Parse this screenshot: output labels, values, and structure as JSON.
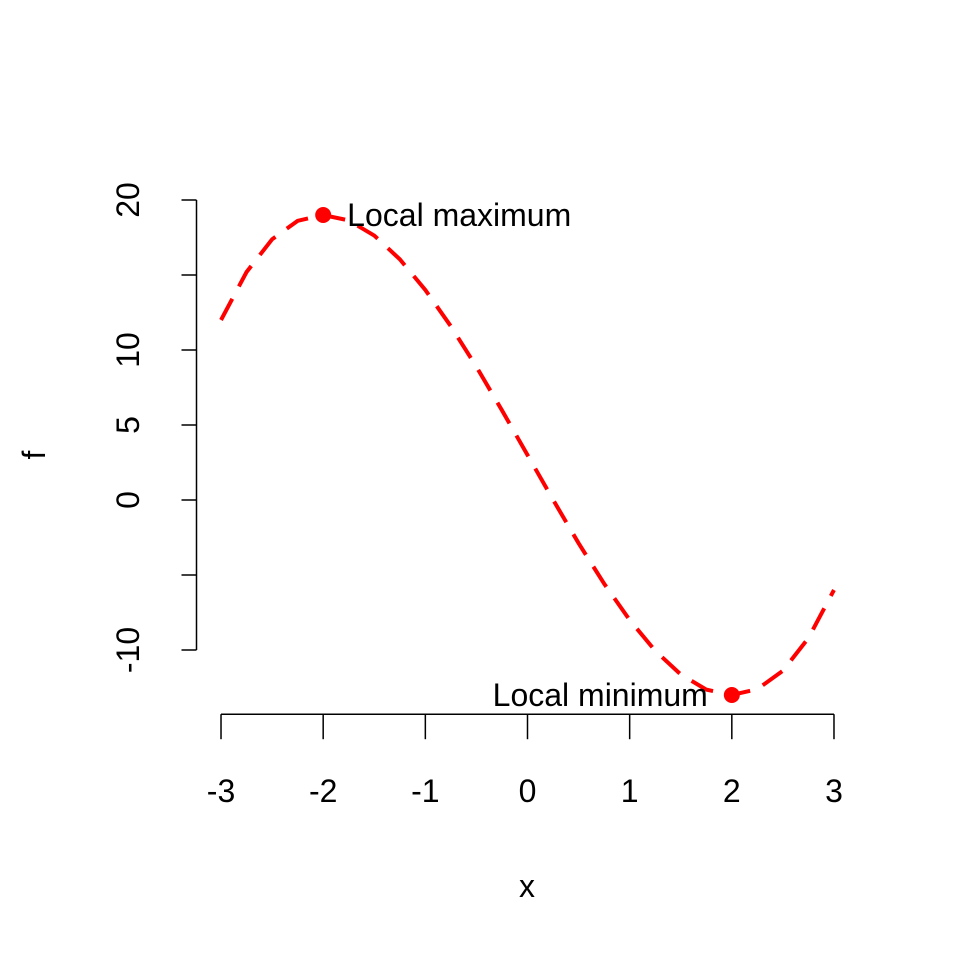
{
  "chart_data": {
    "type": "line",
    "x_label": "x",
    "y_label": "f",
    "x": [
      -3,
      -2.75,
      -2.5,
      -2.25,
      -2,
      -1.75,
      -1.5,
      -1.25,
      -1,
      -0.75,
      -0.5,
      -0.25,
      0,
      0.25,
      0.5,
      0.75,
      1,
      1.25,
      1.5,
      1.75,
      2,
      2.25,
      2.5,
      2.75,
      3
    ],
    "series": [
      {
        "color": "#ff0000",
        "values": [
          12,
          15.2,
          17.38,
          18.61,
          19,
          18.64,
          17.63,
          16.05,
          14,
          11.58,
          8.88,
          5.98,
          3,
          0.02,
          -2.88,
          -5.58,
          -8,
          -10.05,
          -11.63,
          -12.64,
          -13,
          -12.61,
          -11.38,
          -9.2,
          -6
        ]
      }
    ],
    "points": [
      {
        "x": -2,
        "y": 19,
        "label": "Local maximum",
        "label_side": "right"
      },
      {
        "x": 2,
        "y": -13,
        "label": "Local minimum",
        "label_side": "left"
      }
    ],
    "xlim": [
      -3.24,
      3.24
    ],
    "ylim": [
      -14.28,
      20.28
    ],
    "xticks": [
      -3,
      -2,
      -1,
      0,
      1,
      2,
      3
    ],
    "yticks": [
      -10,
      {
        "value": -5,
        "label": null
      },
      0,
      5,
      10,
      {
        "value": 15,
        "label": null
      },
      20
    ]
  }
}
